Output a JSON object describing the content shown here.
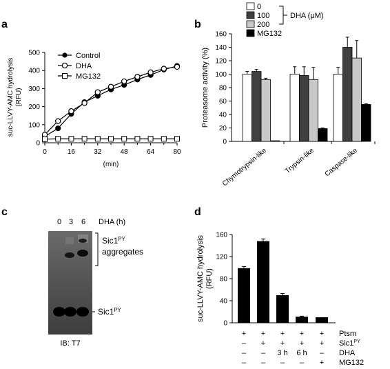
{
  "panels": {
    "a": "a",
    "b": "b",
    "c": "c",
    "d": "d"
  },
  "chart_data": [
    {
      "panel": "a",
      "type": "line",
      "xlabel": "(min)",
      "ylabel_line1": "suc-LLVY-AMC hydrolysis",
      "ylabel_line2": "(RFU)",
      "xlim": [
        0,
        80
      ],
      "ylim": [
        0,
        500
      ],
      "xticks": [
        "0",
        "16",
        "32",
        "48",
        "64",
        "80"
      ],
      "yticks": [
        "0",
        "100",
        "200",
        "300",
        "400",
        "500"
      ],
      "series": [
        {
          "name": "Control",
          "marker": "filled-circle",
          "x": [
            0,
            8,
            16,
            24,
            32,
            40,
            48,
            56,
            64,
            72,
            80
          ],
          "y": [
            35,
            80,
            160,
            225,
            260,
            295,
            320,
            350,
            375,
            405,
            425
          ]
        },
        {
          "name": "DHA",
          "marker": "open-circle",
          "x": [
            0,
            8,
            16,
            24,
            32,
            40,
            48,
            56,
            64,
            72,
            80
          ],
          "y": [
            45,
            120,
            175,
            220,
            280,
            310,
            340,
            365,
            390,
            410,
            420
          ]
        },
        {
          "name": "MG132",
          "marker": "open-square",
          "x": [
            0,
            8,
            16,
            24,
            32,
            40,
            48,
            56,
            64,
            72,
            80
          ],
          "y": [
            20,
            22,
            22,
            22,
            22,
            22,
            22,
            22,
            22,
            22,
            22
          ]
        }
      ]
    },
    {
      "panel": "b",
      "type": "bar",
      "ylabel": "Proteasome activity (%)",
      "ylim": [
        0,
        160
      ],
      "yticks": [
        "0",
        "20",
        "40",
        "60",
        "80",
        "100",
        "120",
        "140",
        "160"
      ],
      "categories": [
        "Chymotrypsin-like",
        "Trypsin-like",
        "Caspase-like"
      ],
      "legend_unit": "DHA (μM)",
      "series": [
        {
          "name": "0",
          "color": "#ffffff",
          "values": [
            100,
            100,
            100
          ],
          "errors": [
            4,
            11,
            10
          ]
        },
        {
          "name": "100",
          "color": "#404040",
          "values": [
            104,
            98,
            140
          ],
          "errors": [
            3,
            13,
            15
          ]
        },
        {
          "name": "200",
          "color": "#c8c8c8",
          "values": [
            92,
            92,
            124
          ],
          "errors": [
            2,
            18,
            26
          ]
        },
        {
          "name": "MG132",
          "color": "#000000",
          "values": [
            1,
            19,
            55
          ],
          "errors": [
            0,
            1,
            1
          ]
        }
      ]
    },
    {
      "panel": "c",
      "type": "blot",
      "lane_header": "DHA (h)",
      "lanes": [
        "0",
        "3",
        "6"
      ],
      "band_label": "Sic1",
      "band_sup": "PY",
      "aggregate_label_line1": "Sic1",
      "aggregate_sup": "PY",
      "aggregate_label_line2": "aggregates",
      "footer": "IB: T7"
    },
    {
      "panel": "d",
      "type": "bar",
      "ylabel_line1": "suc-LLVY-AMC hydrolysis",
      "ylabel_line2": "(RFU)",
      "ylim": [
        0,
        160
      ],
      "yticks": [
        "0",
        "40",
        "80",
        "120",
        "160"
      ],
      "values": [
        99,
        148,
        50,
        11,
        10
      ],
      "errors": [
        3,
        4,
        3,
        1,
        0
      ],
      "condition_rows": [
        {
          "label": "Ptsm",
          "sup": "",
          "cells": [
            "+",
            "+",
            "+",
            "+",
            "+"
          ]
        },
        {
          "label": "Sic1",
          "sup": "PY",
          "cells": [
            "–",
            "+",
            "+",
            "+",
            "+"
          ]
        },
        {
          "label": "DHA",
          "sup": "",
          "cells": [
            "–",
            "–",
            "3 h",
            "6 h",
            "–"
          ]
        },
        {
          "label": "MG132",
          "sup": "",
          "cells": [
            "–",
            "–",
            "–",
            "–",
            "+"
          ]
        }
      ]
    }
  ]
}
